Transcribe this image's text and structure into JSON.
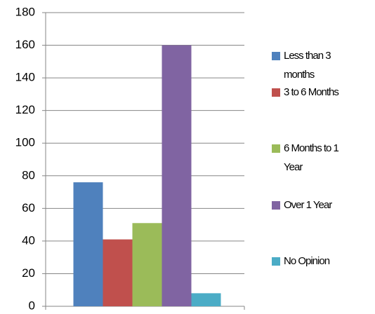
{
  "chart_data": {
    "type": "bar",
    "categories": [
      null
    ],
    "series": [
      {
        "name": "Less than 3 months",
        "color": "#4f81bd",
        "values": [
          76
        ]
      },
      {
        "name": "3 to 6 Months",
        "color": "#c0504d",
        "values": [
          41
        ]
      },
      {
        "name": "6 Months to 1 Year",
        "color": "#9bbb59",
        "values": [
          51
        ]
      },
      {
        "name": "Over 1 Year",
        "color": "#8064a2",
        "values": [
          160
        ]
      },
      {
        "name": "No Opinion",
        "color": "#4bacc6",
        "values": [
          8
        ]
      }
    ],
    "ylim": [
      0,
      180
    ],
    "yticks": [
      0,
      20,
      40,
      60,
      80,
      100,
      120,
      140,
      160,
      180
    ],
    "grid": true,
    "legend": "right"
  }
}
